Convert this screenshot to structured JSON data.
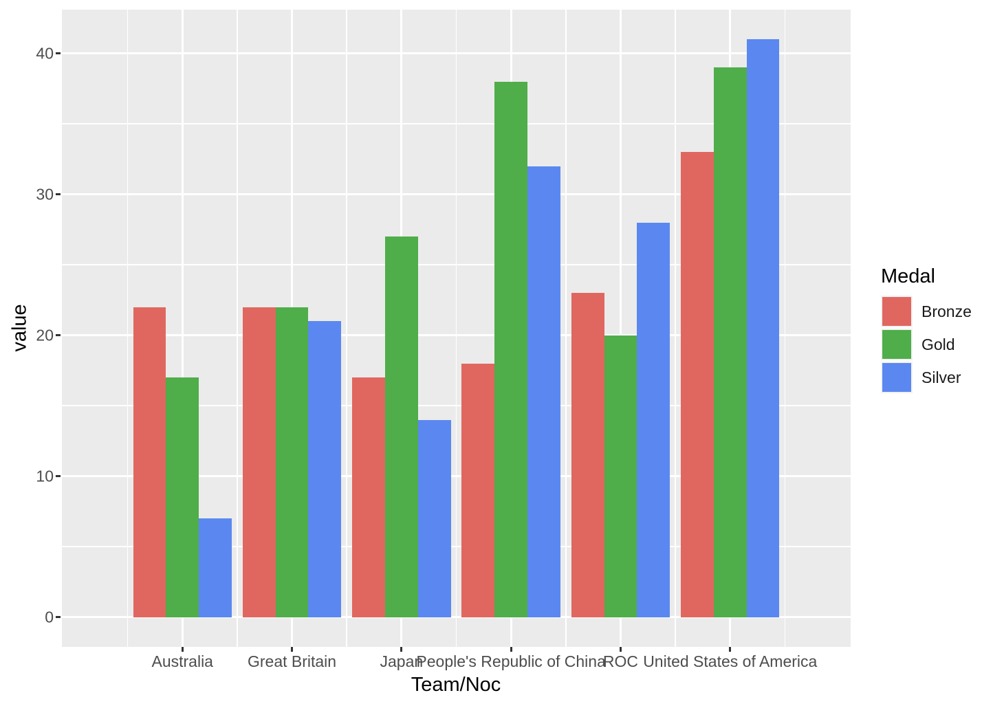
{
  "chart_data": {
    "type": "bar",
    "title": "",
    "xlabel": "Team/Noc",
    "ylabel": "value",
    "categories": [
      "Australia",
      "Great Britain",
      "Japan",
      "People's Republic of China",
      "ROC",
      "United States of America"
    ],
    "series": [
      {
        "name": "Bronze",
        "color": "#e0675f",
        "values": [
          22,
          22,
          17,
          18,
          23,
          33
        ]
      },
      {
        "name": "Gold",
        "color": "#4fad4a",
        "values": [
          17,
          22,
          27,
          38,
          20,
          39
        ]
      },
      {
        "name": "Silver",
        "color": "#5a88f0",
        "values": [
          7,
          21,
          14,
          32,
          28,
          41
        ]
      }
    ],
    "y_ticks": [
      0,
      10,
      20,
      30,
      40
    ],
    "y_minor_ticks": [
      5,
      15,
      25,
      35
    ],
    "ylim": [
      -2.12,
      43.1
    ],
    "legend": {
      "title": "Medal",
      "position": "right",
      "entries": [
        "Bronze",
        "Gold",
        "Silver"
      ]
    },
    "grid": true,
    "colors": {
      "panel_background": "#ebebeb",
      "grid": "#ffffff",
      "tick_mark": "#333333",
      "tick_label": "#4d4d4d",
      "axis_title": "#000000",
      "legend_key_background": "#f2f2f2"
    }
  }
}
